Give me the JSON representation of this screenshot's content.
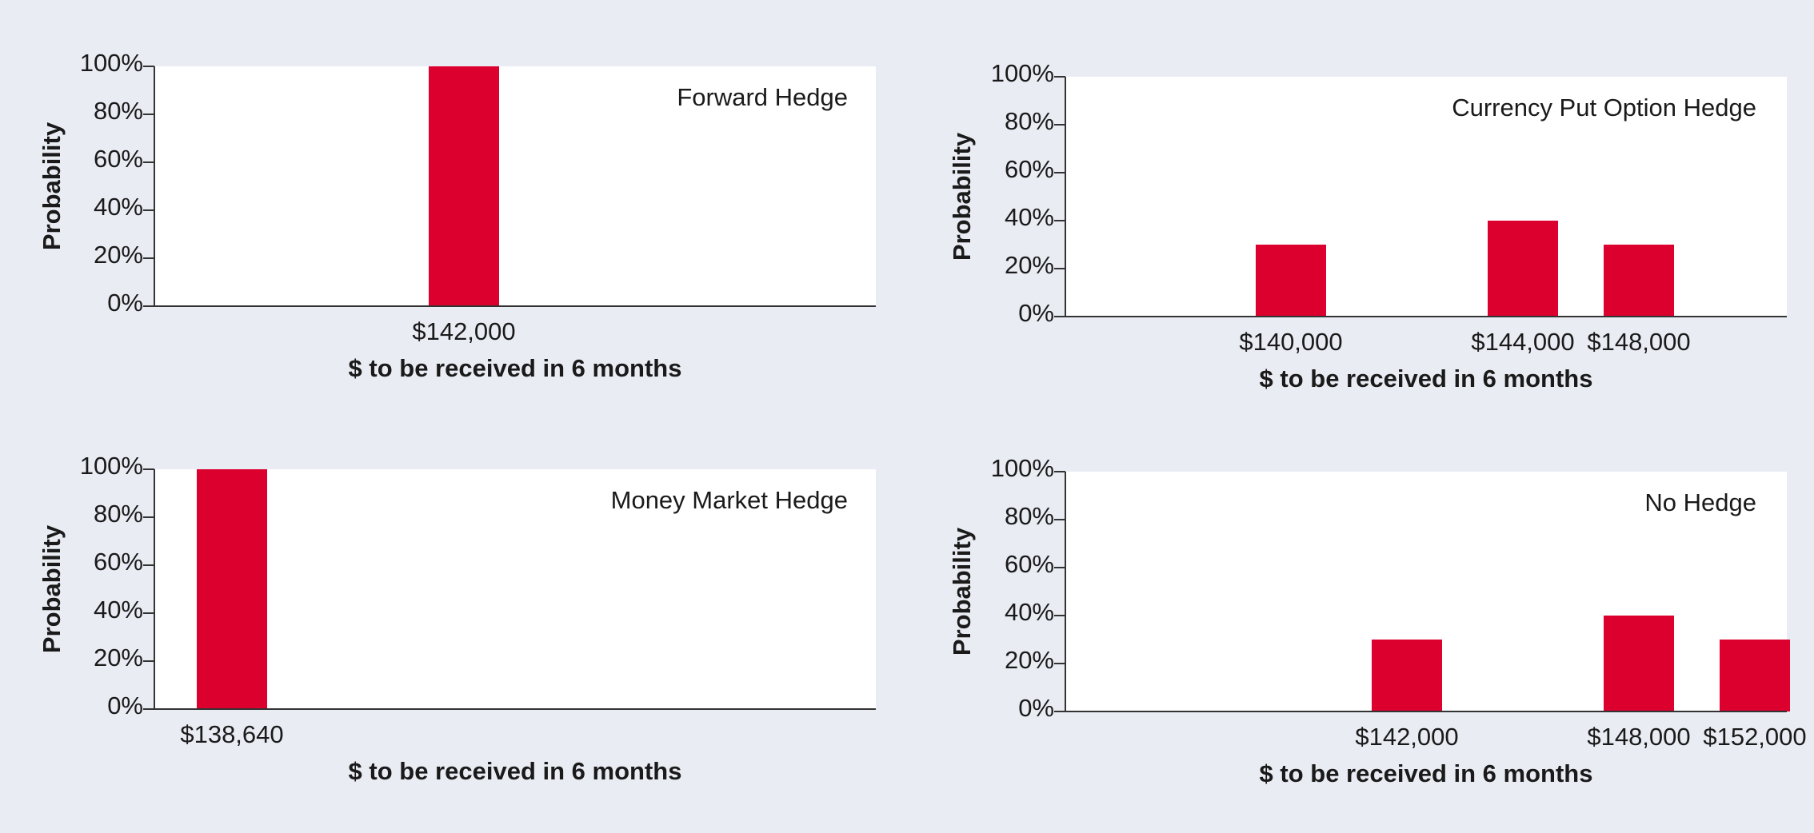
{
  "colors": {
    "background": "#e9ecf3",
    "plot_area": "#ffffff",
    "bar": "#dc002f",
    "axis": "#333333"
  },
  "chart_data": [
    {
      "type": "bar",
      "title": "Forward Hedge",
      "xlabel": "$ to be received in 6 months",
      "ylabel": "Probability",
      "categories": [
        "$142,000"
      ],
      "values": [
        100
      ],
      "y_ticks": [
        "0%",
        "20%",
        "40%",
        "60%",
        "80%",
        "100%"
      ],
      "ylim": [
        0,
        100
      ],
      "grid": false
    },
    {
      "type": "bar",
      "title": "Currency Put Option Hedge",
      "xlabel": "$ to be received in 6 months",
      "ylabel": "Probability",
      "categories": [
        "$140,000",
        "$144,000",
        "$148,000"
      ],
      "values": [
        30,
        40,
        30
      ],
      "y_ticks": [
        "0%",
        "20%",
        "40%",
        "60%",
        "80%",
        "100%"
      ],
      "ylim": [
        0,
        100
      ],
      "grid": false
    },
    {
      "type": "bar",
      "title": "Money Market Hedge",
      "xlabel": "$ to be received in 6 months",
      "ylabel": "Probability",
      "categories": [
        "$138,640"
      ],
      "values": [
        100
      ],
      "y_ticks": [
        "0%",
        "20%",
        "40%",
        "60%",
        "80%",
        "100%"
      ],
      "ylim": [
        0,
        100
      ],
      "grid": false
    },
    {
      "type": "bar",
      "title": "No Hedge",
      "xlabel": "$ to be received in 6 months",
      "ylabel": "Probability",
      "categories": [
        "$142,000",
        "$148,000",
        "$152,000"
      ],
      "values": [
        30,
        40,
        30
      ],
      "y_ticks": [
        "0%",
        "20%",
        "40%",
        "60%",
        "80%",
        "100%"
      ],
      "ylim": [
        0,
        100
      ],
      "grid": false
    }
  ]
}
